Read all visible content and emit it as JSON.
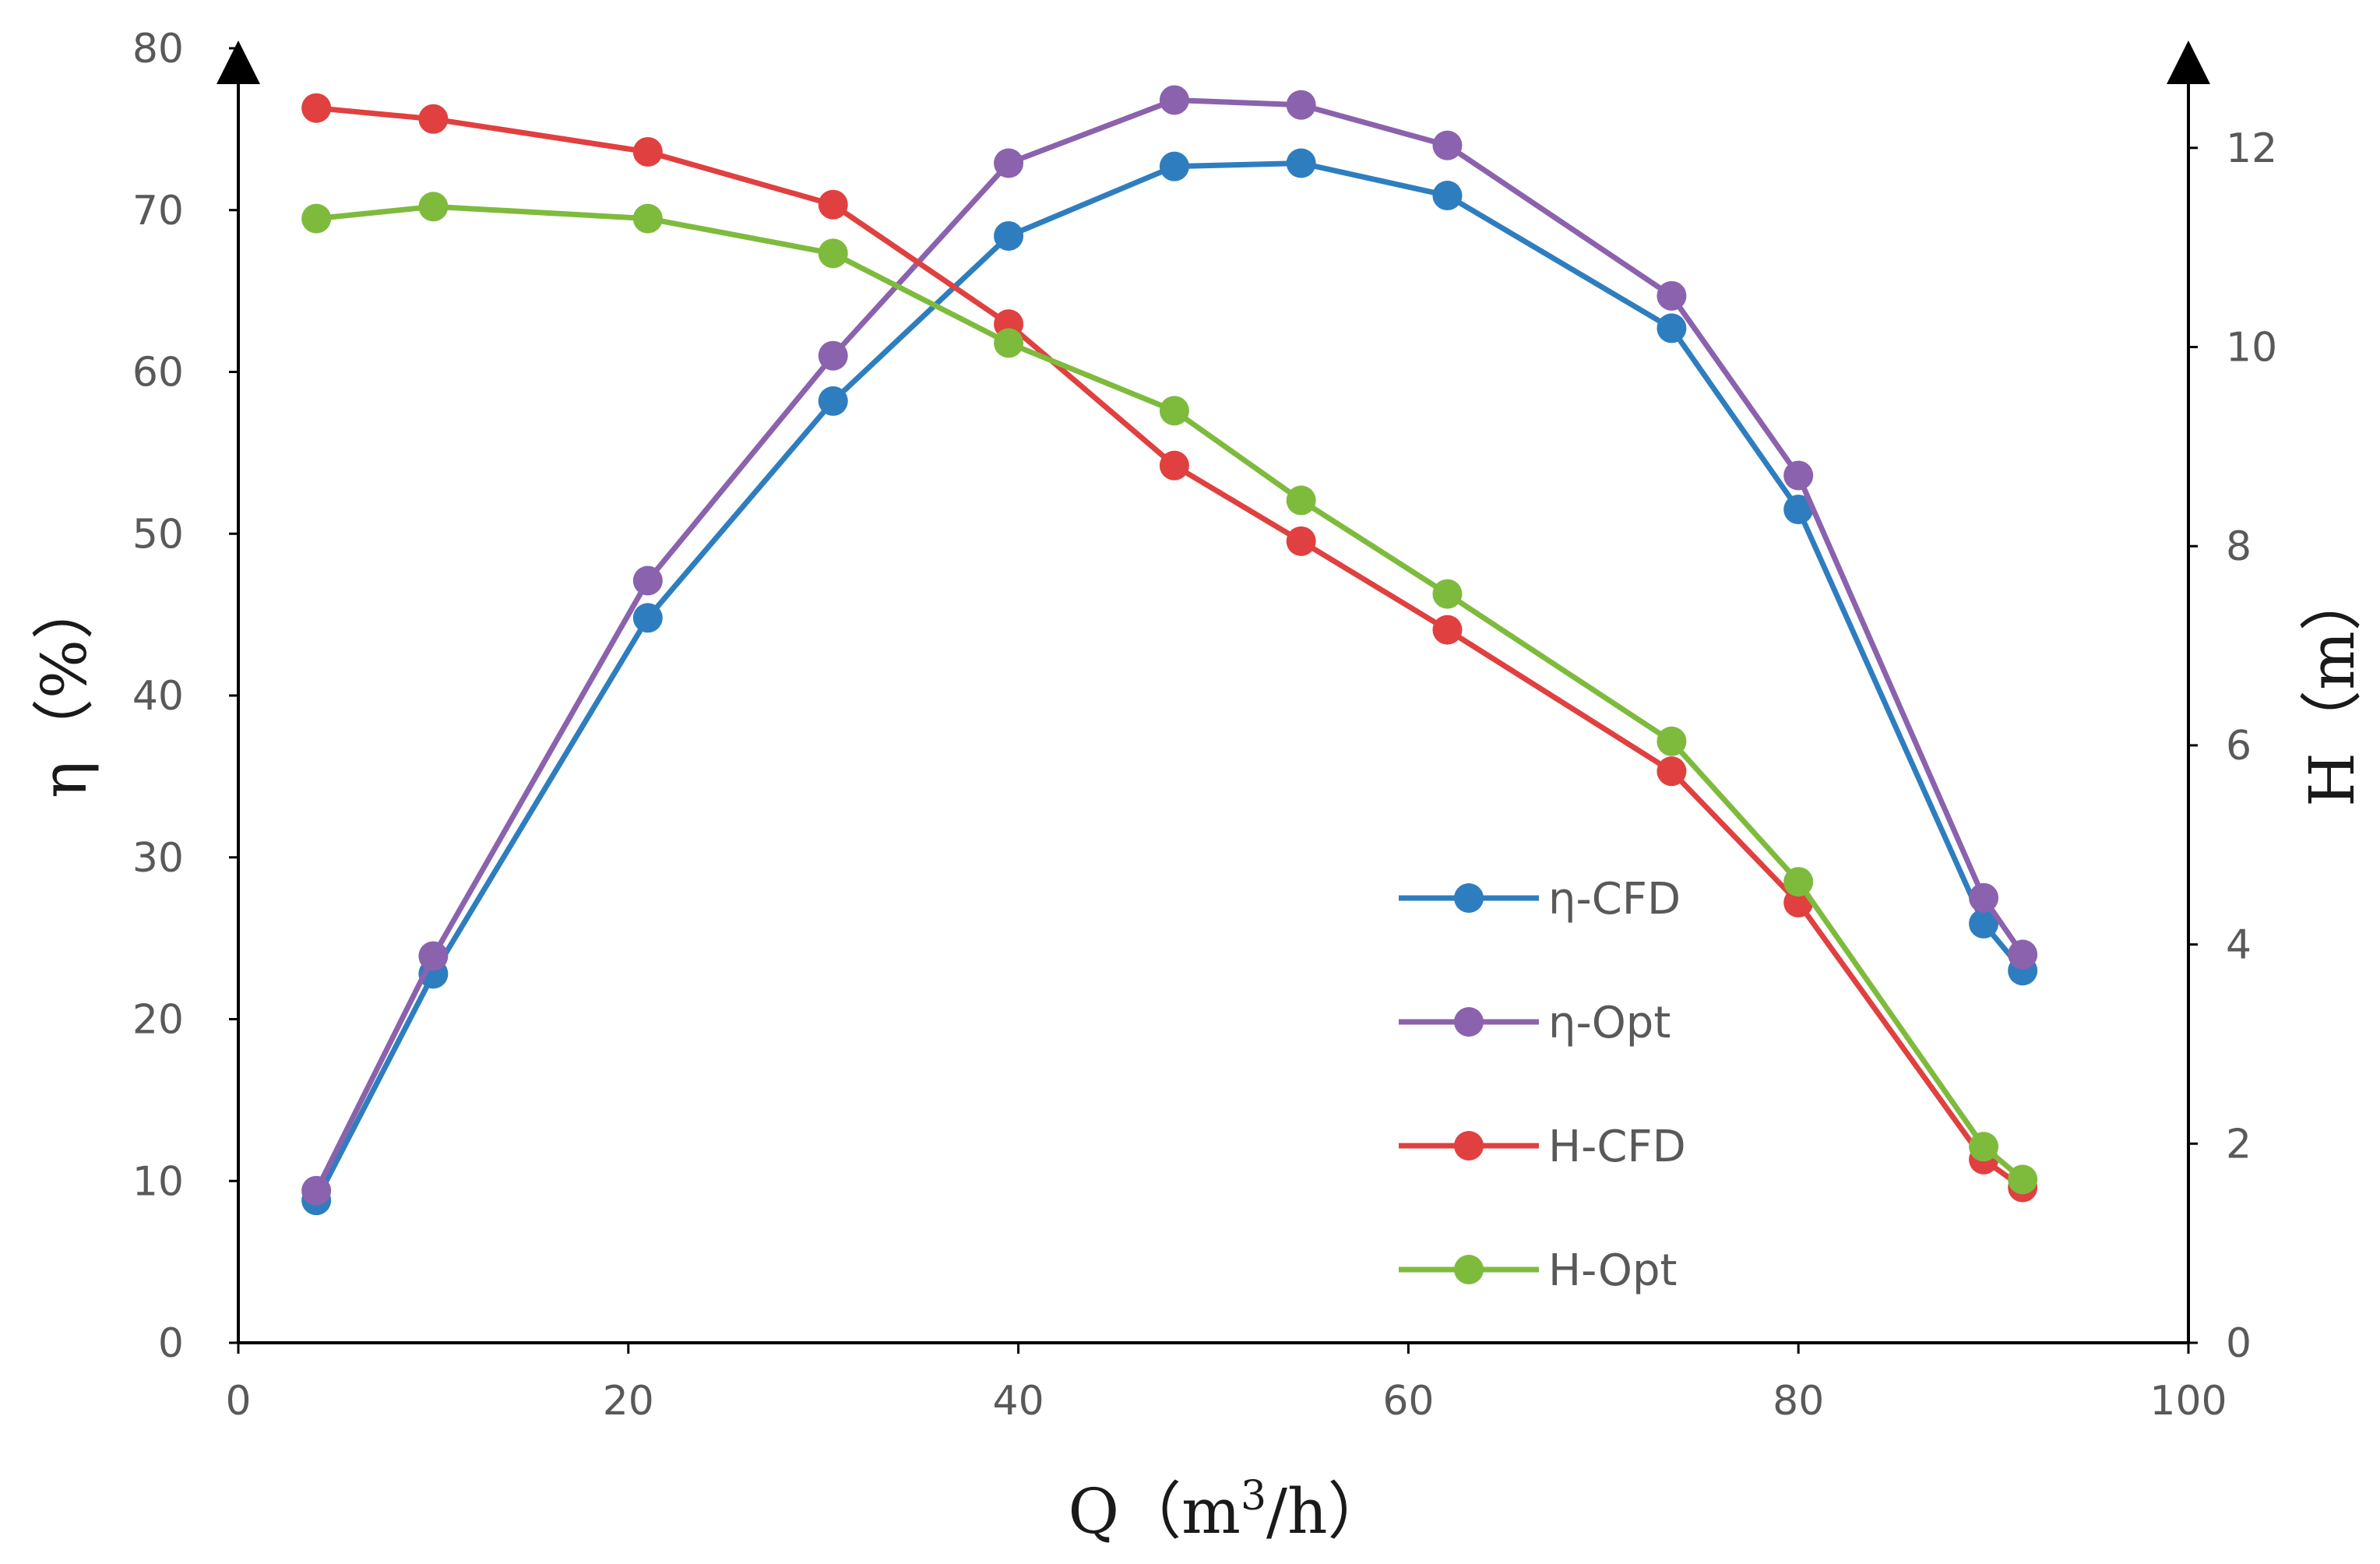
{
  "chart_data": {
    "type": "line",
    "title": "",
    "xlabel": {
      "prefix": "Q（m",
      "sup": "3",
      "suffix": "/h）"
    },
    "ylabel_left": "η（%）",
    "ylabel_right": "H（m）",
    "xlim": [
      0,
      100
    ],
    "ylim_left": [
      0,
      80
    ],
    "ylim_right": [
      0,
      13
    ],
    "xticks": [
      "0",
      "20",
      "40",
      "60",
      "80",
      "100"
    ],
    "yticks_left": [
      "0",
      "10",
      "20",
      "30",
      "40",
      "50",
      "60",
      "70",
      "80"
    ],
    "yticks_right": [
      "0",
      "2",
      "4",
      "6",
      "8",
      "10",
      "12"
    ],
    "legend_position": "lower-right",
    "x": [
      4,
      10,
      21,
      30.5,
      39.5,
      48,
      54.5,
      62,
      73.5,
      80,
      89.5,
      91.5
    ],
    "series": [
      {
        "name": "η-CFD",
        "axis": "left",
        "color": "#2e7ebf",
        "values": [
          8.8,
          22.8,
          44.8,
          58.2,
          68.4,
          72.7,
          72.9,
          70.9,
          62.7,
          51.5,
          25.9,
          23.0
        ]
      },
      {
        "name": "η-Opt",
        "axis": "left",
        "color": "#8b62ad",
        "values": [
          9.4,
          23.9,
          47.1,
          61.0,
          72.9,
          76.8,
          76.5,
          74.0,
          64.7,
          53.6,
          27.5,
          24.0
        ]
      },
      {
        "name": "H-CFD",
        "axis": "right",
        "color": "#e0403f",
        "values": [
          12.4,
          12.29,
          11.96,
          11.43,
          10.23,
          8.81,
          8.05,
          7.16,
          5.74,
          4.42,
          1.84,
          1.56
        ]
      },
      {
        "name": "H-Opt",
        "axis": "right",
        "color": "#7ebb3d",
        "values": [
          11.29,
          11.41,
          11.29,
          10.94,
          10.04,
          9.36,
          8.46,
          7.52,
          6.04,
          4.63,
          1.97,
          1.64
        ]
      }
    ]
  }
}
